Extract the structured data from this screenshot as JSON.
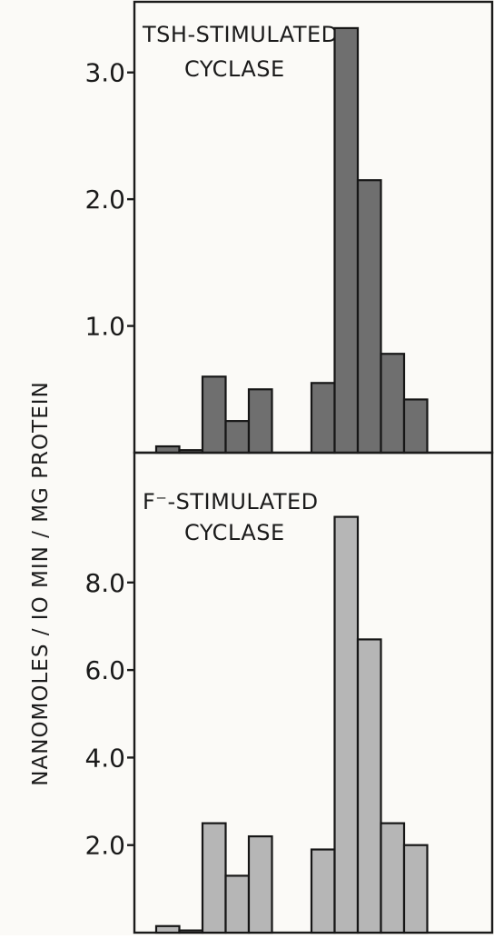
{
  "colors": {
    "background": "#fbfaf7",
    "ink": "#1a1a1a",
    "top_bar_fill": "#6f6f6f",
    "bottom_bar_fill": "#b6b6b6"
  },
  "chart_data": {
    "type": "bar",
    "ylabel": "NANOMOLES / IO MIN / MG  PROTEIN",
    "panels": [
      {
        "title_lines": [
          "TSH-STIMULATED",
          "CYCLASE"
        ],
        "ylim": [
          0,
          3.5
        ],
        "yticks": [
          1.0,
          2.0,
          3.0
        ],
        "ytick_labels": [
          "1.0",
          "2.0",
          "3.0"
        ],
        "groups": [
          [
            0.05,
            0.02,
            0.6,
            0.25,
            0.5
          ],
          [
            0.55,
            3.35,
            2.15,
            0.78,
            0.42
          ]
        ]
      },
      {
        "title_lines": [
          "F⁻-STIMULATED",
          "CYCLASE"
        ],
        "ylim": [
          0,
          10.8
        ],
        "yticks": [
          2.0,
          4.0,
          6.0,
          8.0
        ],
        "ytick_labels": [
          "2.0",
          "4.0",
          "6.0",
          "8.0"
        ],
        "groups": [
          [
            0.15,
            0.05,
            2.5,
            1.3,
            2.2
          ],
          [
            1.9,
            9.5,
            6.7,
            2.5,
            2.0
          ]
        ]
      }
    ]
  }
}
